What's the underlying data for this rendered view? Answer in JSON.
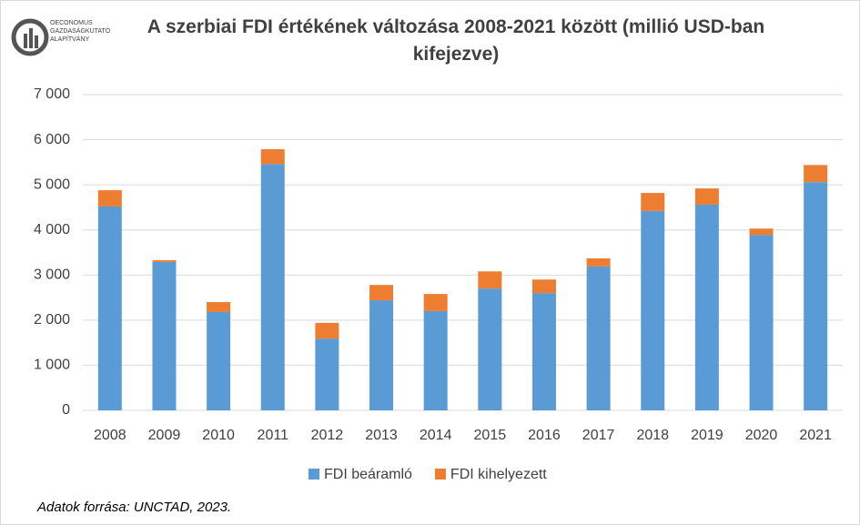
{
  "logo": {
    "lines": [
      "OECONOMUS",
      "GAZDASÁGKUTATÓ",
      "ALAPÍTVÁNY"
    ]
  },
  "source": "Adatok forrása: UNCTAD, 2023.",
  "chart_data": {
    "type": "stacked_bar",
    "title": "A szerbiai FDI értékének változása 2008-2021 között (millió USD-ban kifejezve)",
    "categories": [
      "2008",
      "2009",
      "2010",
      "2011",
      "2012",
      "2013",
      "2014",
      "2015",
      "2016",
      "2017",
      "2018",
      "2019",
      "2020",
      "2021"
    ],
    "series": [
      {
        "name": "FDI beáramló",
        "color": "#5b9bd5",
        "values": [
          4520,
          3290,
          2180,
          5460,
          1590,
          2440,
          2200,
          2700,
          2600,
          3190,
          4420,
          4560,
          3890,
          5060
        ]
      },
      {
        "name": "FDI kihelyezett",
        "color": "#ed7d31",
        "values": [
          360,
          40,
          220,
          330,
          350,
          340,
          380,
          380,
          300,
          180,
          400,
          360,
          140,
          380
        ]
      }
    ],
    "ylim": [
      0,
      7000
    ],
    "yticks": [
      0,
      {
        "value": 1000,
        "label": "1 000"
      },
      {
        "value": 2000,
        "label": "2 000"
      },
      {
        "value": 3000,
        "label": "3 000"
      },
      {
        "value": 4000,
        "label": "4 000"
      },
      {
        "value": 5000,
        "label": "5 000"
      },
      {
        "value": 6000,
        "label": "6 000"
      },
      {
        "value": 7000,
        "label": "7 000"
      }
    ],
    "grid": true,
    "legend": "bottom"
  }
}
